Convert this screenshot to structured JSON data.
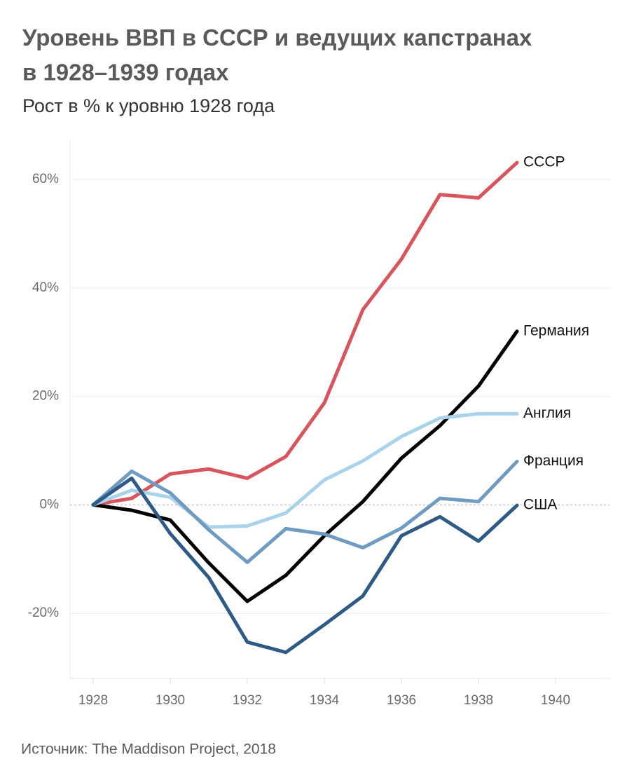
{
  "chart_data": {
    "type": "line",
    "title": "Уровень ВВП в СССР и ведущих капстранах в 1928–1939 годах",
    "subtitle": "Рост в % к уровню 1928 года",
    "source": "Источник: The Maddison Project, 2018",
    "x": [
      1928,
      1929,
      1930,
      1931,
      1932,
      1933,
      1934,
      1935,
      1936,
      1937,
      1938,
      1939
    ],
    "series": [
      {
        "name": "СССР",
        "color": "#d9555d",
        "values": [
          0,
          1.2,
          5.7,
          6.6,
          4.9,
          8.9,
          18.8,
          36.0,
          45.3,
          57.2,
          56.6,
          63.1
        ]
      },
      {
        "name": "Германия",
        "color": "#000000",
        "values": [
          0,
          -1.0,
          -2.8,
          -10.7,
          -17.8,
          -13.0,
          -5.7,
          0.6,
          8.6,
          14.6,
          21.9,
          32.0
        ]
      },
      {
        "name": "Англия",
        "color": "#a9d3ea",
        "values": [
          0,
          2.7,
          1.4,
          -4.1,
          -3.9,
          -1.5,
          4.6,
          8.1,
          12.6,
          16.0,
          16.8,
          16.8
        ]
      },
      {
        "name": "Франция",
        "color": "#6f9bc3",
        "values": [
          0,
          6.2,
          2.2,
          -4.6,
          -10.6,
          -4.4,
          -5.4,
          -7.9,
          -4.3,
          1.2,
          0.6,
          8.0
        ]
      },
      {
        "name": "США",
        "color": "#2d5a86",
        "values": [
          0,
          4.9,
          -5.3,
          -13.4,
          -25.3,
          -27.2,
          -22.1,
          -16.8,
          -5.7,
          -2.2,
          -6.7,
          -0.1
        ]
      }
    ],
    "xlim": [
      1927.4,
      1941.4
    ],
    "xticks": [
      1928,
      1930,
      1932,
      1934,
      1936,
      1938,
      1940
    ],
    "ylim": [
      -32,
      67.5
    ],
    "yticks": [
      {
        "value": -20,
        "label": "-20%"
      },
      {
        "value": 0,
        "label": "0%"
      },
      {
        "value": 20,
        "label": "20%"
      },
      {
        "value": 40,
        "label": "40%"
      },
      {
        "value": 60,
        "label": "60%"
      }
    ],
    "grid": true
  }
}
